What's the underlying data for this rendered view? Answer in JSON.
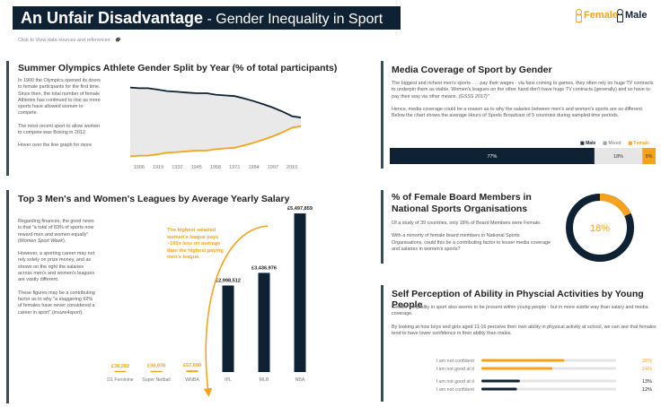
{
  "header": {
    "title_bold": "An Unfair Disadvantage",
    "title_rest": " - Gender Inequality in Sport",
    "legend_female": "Female",
    "legend_male": "Male",
    "sources_link": "Click to View data sources and references"
  },
  "colors": {
    "navy": "#0f2233",
    "orange": "#f7a21b",
    "grey": "#b8b8b8",
    "area": "#e9e9e9",
    "darkbar": "#3c4a56"
  },
  "olympics": {
    "title": "Summer Olympics Athlete Gender Split by Year (% of total participants)",
    "paragraphs": [
      "In 1900 the Olympics opened its doors to female participants for the first time.  Since then, the total number of female Athletes has continued to rise as more sports have allowed women to compete.",
      "The most recent sport to allow women to compete was Boxing in 2012.",
      "Hover over the line graph for more"
    ]
  },
  "media": {
    "title": "Media Coverage of Sport by Gender",
    "para1": "The biggest and richest men's sports . . . pay their wages - via fans coming to games, they often rely on huge TV contracts to underpin them as viable. Women's leagues on the other hand don't have huge TV contracts (generally) and so have to pay their way via other means. ",
    "para1_cite": "(GSSS 2017)\"",
    "para2": "Hence, media coverage could be a reason as to why the salaries between men's and women's sports are so different. Below the chart shows the average Hours of Sports Broadcast of 5 countries during sampled time periods.",
    "legend": [
      "Male",
      "Mixed",
      "Female"
    ]
  },
  "salary": {
    "title": "Top 3 Men's and Women's Leagues by Average Yearly Salary",
    "p1": "Regarding finances, the good news is that \"a total of 83% of sports now reward men and women equally\" (",
    "p1_cite": "Women Sport Week",
    "p1_end": ").",
    "p2": "However, a sporting career may not rely solely on prize money, and as shown on the right the salaries across men's and women's leagues are vastly different.",
    "p3": "These figures may be a contributing factor as to why \"a staggering 92% of females have never considered a career in sport\" (",
    "p3_cite": "insure4sport",
    "p3_end": ").",
    "annotation": "The highest salaried women's league pays ~100x less on average than the highest paying men's league."
  },
  "board": {
    "title": "% of Female Board Members in National Sports Organisations",
    "p1": "Of a study of 39 countries, only 18% of Board Members were Female.",
    "p2": "With a minority of female board members in National Sports Organisations, could this be a contributing factor to lesser media coverage and salaries in women's sports?",
    "value_label": "18%"
  },
  "perception": {
    "title": "Self Perception of Ability in Physcial Activities by Young People",
    "p1": "Gender inequality in sport also seems to be present within young people - but in more subtle way than salary and media coverage.",
    "p2": "By looking at how boys and girls aged 11-16 perceive their own ability in physical activity at school, we can see that females tend to have lower confidence in their ability than males."
  },
  "chart_data": [
    {
      "type": "area",
      "title": "Summer Olympics Athlete Gender Split by Year (% of total participants)",
      "x": [
        1900,
        1906,
        1912,
        1919,
        1925,
        1932,
        1938,
        1945,
        1952,
        1958,
        1964,
        1971,
        1977,
        1984,
        1990,
        1997,
        2004,
        2010,
        2016
      ],
      "x_ticks": [
        1906,
        1919,
        1932,
        1945,
        1958,
        1971,
        1984,
        1997,
        2010
      ],
      "series": [
        {
          "name": "Male",
          "color": "#0f2233",
          "values": [
            98,
            97,
            97,
            95,
            93,
            92,
            91,
            90,
            90,
            88,
            87,
            86,
            83,
            79,
            75,
            70,
            64,
            58,
            56
          ]
        },
        {
          "name": "Female",
          "color": "#f7a21b",
          "values": [
            2,
            3,
            3,
            5,
            7,
            8,
            9,
            10,
            10,
            12,
            13,
            14,
            17,
            21,
            25,
            30,
            36,
            42,
            44
          ]
        }
      ],
      "ylim": [
        0,
        100
      ]
    },
    {
      "type": "bar",
      "orientation": "horizontal-stacked",
      "title": "Media Coverage of Sport by Gender",
      "series": [
        {
          "name": "Male",
          "value": 77,
          "label": "77%",
          "color": "#0f2233"
        },
        {
          "name": "Mixed",
          "value": 18,
          "label": "18%",
          "color": "#e6e6e6"
        },
        {
          "name": "Female",
          "value": 5,
          "label": "5%",
          "color": "#f7a21b"
        }
      ]
    },
    {
      "type": "bar",
      "title": "Top 3 Men's and Women's Leagues by Average Yearly Salary",
      "categories": [
        "D1 Feminine",
        "Super Netball",
        "WNBA",
        "IPL",
        "MLB",
        "NBA"
      ],
      "values": [
        38282,
        39978,
        57690,
        2998512,
        3436976,
        5497859
      ],
      "labels": [
        "£38,282",
        "£39,978",
        "£57,690",
        "£2,998,512",
        "£3,436,976",
        "£5,497,859"
      ],
      "genders": [
        "Female",
        "Female",
        "Female",
        "Male",
        "Male",
        "Male"
      ],
      "ylim": [
        0,
        5500000
      ]
    },
    {
      "type": "pie",
      "title": "% of Female Board Members in National Sports Organisations",
      "slices": [
        {
          "name": "Female",
          "value": 18,
          "color": "#f7a21b"
        },
        {
          "name": "Male",
          "value": 82,
          "color": "#0f2233"
        }
      ],
      "center_label": "18%"
    },
    {
      "type": "bar",
      "orientation": "horizontal",
      "title": "Self Perception of Ability in Physcial Activities by Young People",
      "categories": [
        "I am not confident",
        "I am not good at it",
        "I am not good at it",
        "I am not confident"
      ],
      "values": [
        28,
        24,
        13,
        12
      ],
      "labels": [
        "28%",
        "24%",
        "13%",
        "12%"
      ],
      "genders": [
        "Female",
        "Female",
        "Male",
        "Male"
      ],
      "xlim": [
        0,
        100
      ]
    }
  ]
}
